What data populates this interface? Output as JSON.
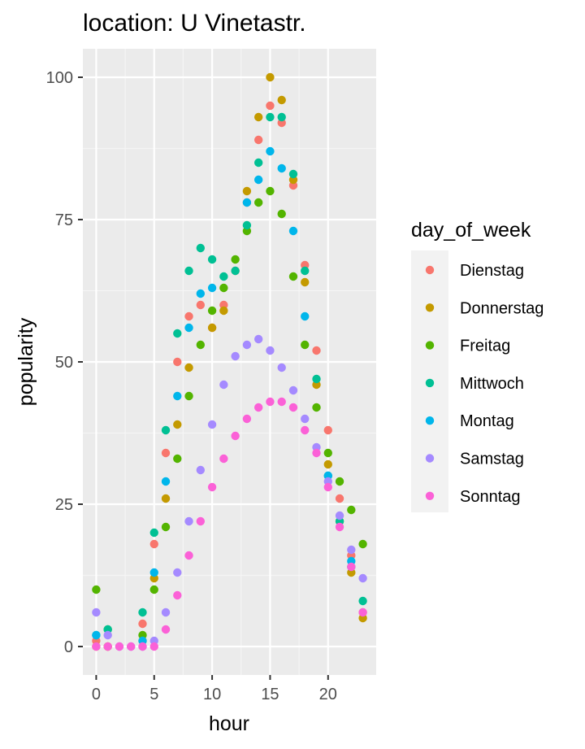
{
  "chart_data": {
    "type": "scatter",
    "title": "location: U Vinetastr.",
    "xlabel": "hour",
    "ylabel": "popularity",
    "xlim": [
      -1.15,
      24.15
    ],
    "ylim": [
      -5,
      105
    ],
    "x_ticks": [
      0,
      5,
      10,
      15,
      20
    ],
    "y_ticks": [
      0,
      25,
      50,
      75,
      100
    ],
    "grid": true,
    "legend": {
      "title": "day_of_week",
      "position": "right"
    },
    "series": [
      {
        "name": "Dienstag",
        "color": "#F8766D",
        "points": [
          [
            0,
            1
          ],
          [
            1,
            0
          ],
          [
            4,
            4
          ],
          [
            5,
            18
          ],
          [
            6,
            34
          ],
          [
            7,
            50
          ],
          [
            8,
            58
          ],
          [
            9,
            60
          ],
          [
            10,
            56
          ],
          [
            11,
            60
          ],
          [
            12,
            66
          ],
          [
            13,
            78
          ],
          [
            14,
            89
          ],
          [
            15,
            95
          ],
          [
            16,
            92
          ],
          [
            17,
            81
          ],
          [
            18,
            67
          ],
          [
            19,
            52
          ],
          [
            20,
            38
          ],
          [
            21,
            26
          ],
          [
            22,
            16
          ],
          [
            23,
            6
          ]
        ]
      },
      {
        "name": "Donnerstag",
        "color": "#C49A00",
        "points": [
          [
            0,
            0
          ],
          [
            1,
            0
          ],
          [
            4,
            1
          ],
          [
            5,
            12
          ],
          [
            6,
            26
          ],
          [
            7,
            39
          ],
          [
            8,
            49
          ],
          [
            10,
            56
          ],
          [
            11,
            59
          ],
          [
            13,
            80
          ],
          [
            14,
            93
          ],
          [
            15,
            100
          ],
          [
            16,
            96
          ],
          [
            17,
            82
          ],
          [
            18,
            64
          ],
          [
            19,
            46
          ],
          [
            20,
            32
          ],
          [
            21,
            22
          ],
          [
            22,
            13
          ],
          [
            23,
            5
          ]
        ]
      },
      {
        "name": "Freitag",
        "color": "#53B400",
        "points": [
          [
            0,
            10
          ],
          [
            1,
            3
          ],
          [
            4,
            2
          ],
          [
            5,
            10
          ],
          [
            6,
            21
          ],
          [
            7,
            33
          ],
          [
            8,
            44
          ],
          [
            9,
            53
          ],
          [
            10,
            59
          ],
          [
            11,
            63
          ],
          [
            12,
            68
          ],
          [
            13,
            73
          ],
          [
            14,
            78
          ],
          [
            15,
            80
          ],
          [
            16,
            76
          ],
          [
            17,
            65
          ],
          [
            18,
            53
          ],
          [
            19,
            42
          ],
          [
            20,
            34
          ],
          [
            21,
            29
          ],
          [
            22,
            24
          ],
          [
            23,
            18
          ]
        ]
      },
      {
        "name": "Mittwoch",
        "color": "#00C094",
        "points": [
          [
            0,
            2
          ],
          [
            1,
            3
          ],
          [
            4,
            6
          ],
          [
            5,
            20
          ],
          [
            6,
            38
          ],
          [
            7,
            55
          ],
          [
            8,
            66
          ],
          [
            9,
            70
          ],
          [
            10,
            68
          ],
          [
            11,
            65
          ],
          [
            12,
            66
          ],
          [
            13,
            74
          ],
          [
            14,
            85
          ],
          [
            15,
            93
          ],
          [
            16,
            93
          ],
          [
            17,
            83
          ],
          [
            18,
            66
          ],
          [
            19,
            47
          ],
          [
            20,
            30
          ],
          [
            21,
            22
          ],
          [
            22,
            14
          ],
          [
            23,
            8
          ]
        ]
      },
      {
        "name": "Montag",
        "color": "#00B6EB",
        "points": [
          [
            0,
            2
          ],
          [
            4,
            1
          ],
          [
            5,
            13
          ],
          [
            6,
            29
          ],
          [
            7,
            44
          ],
          [
            8,
            56
          ],
          [
            9,
            62
          ],
          [
            10,
            63
          ],
          [
            13,
            78
          ],
          [
            14,
            82
          ],
          [
            15,
            87
          ],
          [
            16,
            84
          ],
          [
            17,
            73
          ],
          [
            18,
            58
          ],
          [
            20,
            30
          ],
          [
            22,
            15
          ]
        ]
      },
      {
        "name": "Samstag",
        "color": "#A58AFF",
        "points": [
          [
            0,
            6
          ],
          [
            1,
            2
          ],
          [
            2,
            0
          ],
          [
            3,
            0
          ],
          [
            4,
            0
          ],
          [
            5,
            1
          ],
          [
            6,
            6
          ],
          [
            7,
            13
          ],
          [
            8,
            22
          ],
          [
            9,
            31
          ],
          [
            10,
            39
          ],
          [
            11,
            46
          ],
          [
            12,
            51
          ],
          [
            13,
            53
          ],
          [
            14,
            54
          ],
          [
            15,
            52
          ],
          [
            16,
            49
          ],
          [
            17,
            45
          ],
          [
            18,
            40
          ],
          [
            19,
            35
          ],
          [
            20,
            29
          ],
          [
            21,
            23
          ],
          [
            22,
            17
          ],
          [
            23,
            12
          ]
        ]
      },
      {
        "name": "Sonntag",
        "color": "#FB61D7",
        "points": [
          [
            0,
            0
          ],
          [
            1,
            0
          ],
          [
            2,
            0
          ],
          [
            3,
            0
          ],
          [
            4,
            0
          ],
          [
            5,
            0
          ],
          [
            6,
            3
          ],
          [
            7,
            9
          ],
          [
            8,
            16
          ],
          [
            9,
            22
          ],
          [
            10,
            28
          ],
          [
            11,
            33
          ],
          [
            12,
            37
          ],
          [
            13,
            40
          ],
          [
            14,
            42
          ],
          [
            15,
            43
          ],
          [
            16,
            43
          ],
          [
            17,
            42
          ],
          [
            18,
            38
          ],
          [
            19,
            34
          ],
          [
            20,
            28
          ],
          [
            21,
            21
          ],
          [
            22,
            14
          ],
          [
            23,
            6
          ]
        ]
      }
    ]
  }
}
